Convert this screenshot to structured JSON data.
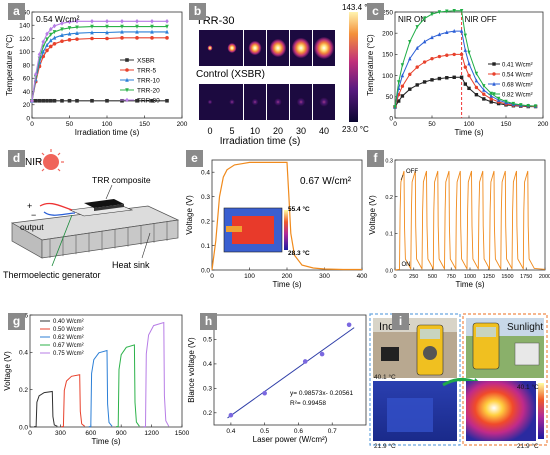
{
  "panel_labels": {
    "a": "a",
    "b": "b",
    "c": "c",
    "d": "d",
    "e": "e",
    "f": "f",
    "g": "g",
    "h": "h",
    "i": "i"
  },
  "colors": {
    "xsbr": "#303030",
    "trr5": "#e8412c",
    "trr10": "#2c7fd6",
    "trr20": "#2cb24a",
    "trr30": "#b77de6",
    "orange": "#f08a1c",
    "fit": "#2f3ea8",
    "h_point": "#7b68e0",
    "c041": "#222222",
    "c054": "#e8412c",
    "c068": "#2c5fd6",
    "c082": "#1fae45"
  },
  "chart_data": [
    {
      "panel": "a",
      "type": "line",
      "annotation": "0.54 W/cm²",
      "xlabel": "Irradiation time (s)",
      "ylabel": "Temperature (°C)",
      "xlim": [
        0,
        200
      ],
      "ylim": [
        0,
        160
      ],
      "xticks": [
        "0",
        "50",
        "100",
        "150",
        "200"
      ],
      "yticks": [
        "0",
        "20",
        "40",
        "60",
        "80",
        "100",
        "120",
        "140",
        "160"
      ],
      "x": [
        0,
        5,
        10,
        15,
        20,
        25,
        30,
        40,
        50,
        60,
        80,
        100,
        120,
        140,
        160,
        180
      ],
      "series": [
        {
          "name": "XSBR",
          "values": [
            26,
            26,
            26,
            26,
            26,
            26,
            26,
            26,
            26,
            26,
            26,
            26,
            26,
            26,
            26,
            26
          ]
        },
        {
          "name": "TRR-5",
          "values": [
            26,
            55,
            78,
            93,
            102,
            108,
            112,
            116,
            118,
            119,
            120,
            120,
            121,
            121,
            121,
            121
          ]
        },
        {
          "name": "TRR-10",
          "values": [
            26,
            58,
            84,
            100,
            110,
            117,
            121,
            125,
            127,
            128,
            129,
            129,
            130,
            130,
            130,
            130
          ]
        },
        {
          "name": "TRR-20",
          "values": [
            26,
            62,
            90,
            108,
            119,
            126,
            130,
            134,
            136,
            137,
            138,
            138,
            138,
            138,
            138,
            138
          ]
        },
        {
          "name": "TRR-30",
          "values": [
            26,
            66,
            96,
            115,
            127,
            134,
            139,
            143,
            145,
            146,
            146,
            146,
            146,
            146,
            146,
            146
          ]
        }
      ]
    },
    {
      "panel": "b",
      "type": "heatmap",
      "row_labels": [
        "TRR-30",
        "Control (XSBR)"
      ],
      "xticks": [
        "0",
        "5",
        "10",
        "20",
        "30",
        "40"
      ],
      "xlabel": "Irradiation time (s)",
      "colorbar_max": "143.4 °C",
      "colorbar_min": "23.0 °C"
    },
    {
      "panel": "c",
      "type": "line",
      "annotations": [
        "NIR ON",
        "NIR OFF"
      ],
      "xlabel": "Time (s)",
      "ylabel": "Temperature (°C)",
      "xlim": [
        0,
        200
      ],
      "ylim": [
        0,
        250
      ],
      "xticks": [
        "0",
        "50",
        "100",
        "150",
        "200"
      ],
      "yticks": [
        "0",
        "50",
        "100",
        "150",
        "200",
        "250"
      ],
      "nir_off_at": 90,
      "x": [
        0,
        5,
        10,
        20,
        30,
        40,
        50,
        60,
        70,
        80,
        90,
        95,
        100,
        110,
        120,
        130,
        140,
        150,
        160,
        170,
        180,
        190
      ],
      "series": [
        {
          "name": "0.41 W/cm²",
          "values": [
            26,
            40,
            52,
            68,
            78,
            85,
            90,
            93,
            95,
            96,
            96,
            80,
            70,
            55,
            45,
            38,
            34,
            31,
            29,
            28,
            27,
            27
          ]
        },
        {
          "name": "0.54 W/cm²",
          "values": [
            26,
            55,
            75,
            103,
            120,
            132,
            140,
            145,
            148,
            150,
            150,
            120,
            100,
            72,
            56,
            45,
            38,
            33,
            30,
            29,
            28,
            27
          ]
        },
        {
          "name": "0.68 W/cm²",
          "values": [
            26,
            70,
            100,
            140,
            165,
            180,
            190,
            197,
            202,
            205,
            205,
            160,
            128,
            88,
            66,
            52,
            42,
            36,
            32,
            30,
            29,
            28
          ]
        },
        {
          "name": "0.82 W/cm²",
          "values": [
            26,
            85,
            125,
            180,
            215,
            235,
            245,
            250,
            252,
            253,
            253,
            195,
            155,
            105,
            76,
            58,
            46,
            39,
            34,
            31,
            29,
            28
          ]
        }
      ]
    },
    {
      "panel": "e",
      "type": "line",
      "annotation": "0.67 W/cm²",
      "inset_high": "55.4 °C",
      "inset_low": "28.3 °C",
      "xlabel": "Time (s)",
      "ylabel": "Voltage (V)",
      "xlim": [
        0,
        400
      ],
      "ylim": [
        0,
        0.45
      ],
      "xticks": [
        "0",
        "100",
        "200",
        "300",
        "400"
      ],
      "yticks": [
        "0.0",
        "0.1",
        "0.2",
        "0.3",
        "0.4"
      ],
      "x": [
        0,
        10,
        20,
        30,
        40,
        60,
        80,
        100,
        150,
        200,
        205,
        210,
        220,
        240,
        270,
        300,
        350,
        400
      ],
      "values": [
        0,
        0.12,
        0.3,
        0.38,
        0.41,
        0.43,
        0.435,
        0.44,
        0.44,
        0.44,
        0.3,
        0.15,
        0.06,
        0.02,
        0.008,
        0.004,
        0.002,
        0.002
      ]
    },
    {
      "panel": "f",
      "type": "line",
      "annotations": [
        "OFF",
        "ON"
      ],
      "xlabel": "Time (s)",
      "ylabel": "Voltage (V)",
      "xlim": [
        0,
        2000
      ],
      "ylim": [
        0,
        0.3
      ],
      "xticks": [
        "0",
        "250",
        "500",
        "750",
        "1000",
        "1250",
        "1500",
        "1750",
        "2000"
      ],
      "yticks": [
        "0.0",
        "0.1",
        "0.2",
        "0.3"
      ],
      "cycles": 12,
      "cycle_start": 60,
      "cycle_period": 150,
      "on_duration": 60,
      "peak_voltage": 0.27
    },
    {
      "panel": "g",
      "type": "line",
      "xlabel": "Time (s)",
      "ylabel": "Voltage (V)",
      "xlim": [
        0,
        1500
      ],
      "ylim": [
        0,
        0.6
      ],
      "xticks": [
        "0",
        "300",
        "600",
        "900",
        "1200",
        "1500"
      ],
      "yticks": [
        "0.0",
        "0.2",
        "0.4",
        "0.6"
      ],
      "series": [
        {
          "name": "0.40 W/cm²",
          "start": 60,
          "end": 220,
          "peak": 0.19
        },
        {
          "name": "0.50 W/cm²",
          "start": 330,
          "end": 490,
          "peak": 0.28
        },
        {
          "name": "0.62 W/cm²",
          "start": 600,
          "end": 760,
          "peak": 0.41
        },
        {
          "name": "0.67 W/cm²",
          "start": 870,
          "end": 1030,
          "peak": 0.44
        },
        {
          "name": "0.75 W/cm²",
          "start": 1140,
          "end": 1320,
          "peak": 0.56
        }
      ]
    },
    {
      "panel": "h",
      "type": "scatter",
      "xlabel": "Laser power (W/cm²)",
      "ylabel": "Blance voltage (V)",
      "xlim": [
        0.35,
        0.8
      ],
      "ylim": [
        0.15,
        0.6
      ],
      "xticks": [
        "0.4",
        "0.5",
        "0.6",
        "0.7"
      ],
      "yticks": [
        "0.2",
        "0.3",
        "0.4",
        "0.5"
      ],
      "x": [
        0.4,
        0.5,
        0.62,
        0.67,
        0.75
      ],
      "values": [
        0.19,
        0.28,
        0.41,
        0.44,
        0.56
      ],
      "fit_equation": "y= 0.98573x- 0.20561",
      "r_squared": "R²= 0.99458"
    }
  ],
  "panel_d": {
    "nir": "NIR",
    "composite": "TRR composite",
    "output": "output",
    "plus": "+",
    "minus": "−",
    "teg": "Thermoelectic generator",
    "heatsink": "Heat sink"
  },
  "panel_i": {
    "indoor": "Indoor",
    "sunlight": "Sunlight",
    "indoor_high": "40.1 °C",
    "indoor_low": "21.9 °C",
    "sun_high": "40.1 °C",
    "sun_low": "21.9 °C"
  }
}
